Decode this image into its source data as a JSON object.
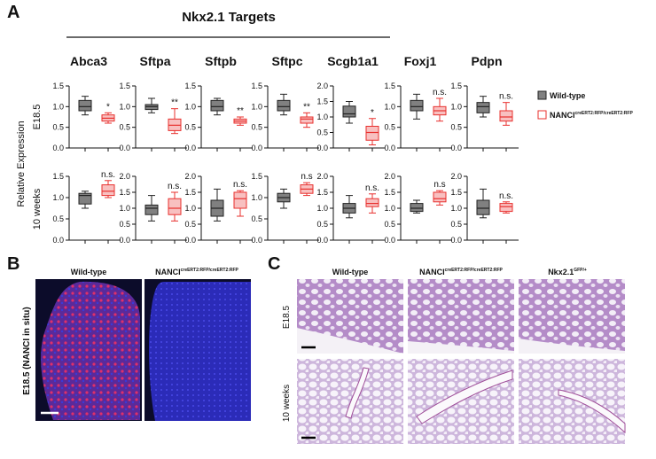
{
  "figure": {
    "panel_labels": [
      "A",
      "B",
      "C"
    ],
    "panel_a": {
      "title": "Nkx2.1 Targets",
      "y_label": "Relative Expression",
      "row_labels": [
        "E18.5",
        "10 weeks"
      ],
      "legend": [
        {
          "name": "Wild-type",
          "color": "#808080"
        },
        {
          "name": "NANCI",
          "superscript": "creERT2:RFP/creERT2:RFP",
          "color": "#e8302e"
        }
      ]
    },
    "panel_b": {
      "columns": [
        {
          "name": "Wild-type"
        },
        {
          "name": "NANCI",
          "superscript": "creERT2:RFP/creERT2:RFP"
        }
      ],
      "row_label": "E18.5 (NANCI in situ)"
    },
    "panel_c": {
      "columns": [
        {
          "name": "Wild-type"
        },
        {
          "name": "NANCI",
          "superscript": "creERT2:RFP/creERT2:RFP"
        },
        {
          "name": "Nkx2.1",
          "superscript": "GFP/+"
        }
      ],
      "row_labels": [
        "E18.5",
        "10 weeks"
      ]
    }
  },
  "chart_data": [
    {
      "type": "box",
      "title": "Abca3",
      "ylim": [
        0,
        1.5
      ],
      "yticks": [
        {
          "value": 0,
          "label": "0.0"
        },
        0.5,
        {
          "value": 1,
          "label": "1.0"
        },
        1.5
      ],
      "annotation": "*",
      "series": [
        {
          "color": "#808080",
          "values": [
            0.8,
            0.9,
            1.0,
            1.15,
            1.25
          ]
        },
        {
          "color": "#e8302e",
          "values": [
            0.6,
            0.65,
            0.72,
            0.8,
            0.85
          ]
        }
      ]
    },
    {
      "type": "box",
      "title": "Sftpa",
      "ylim": [
        0,
        1.5
      ],
      "yticks": [
        {
          "value": 0,
          "label": "0.0"
        },
        0.5,
        {
          "value": 1,
          "label": "1.0"
        },
        1.5
      ],
      "annotation": "**",
      "series": [
        {
          "color": "#808080",
          "values": [
            0.85,
            0.93,
            1.0,
            1.05,
            1.2
          ]
        },
        {
          "color": "#e8302e",
          "values": [
            0.35,
            0.42,
            0.55,
            0.7,
            0.95
          ]
        }
      ]
    },
    {
      "type": "box",
      "title": "Sftpb",
      "ylim": [
        0,
        1.5
      ],
      "yticks": [
        {
          "value": 0,
          "label": "0.0"
        },
        0.5,
        {
          "value": 1,
          "label": "1.0"
        },
        1.5
      ],
      "annotation": "**",
      "series": [
        {
          "color": "#808080",
          "values": [
            0.8,
            0.9,
            1.0,
            1.15,
            1.2
          ]
        },
        {
          "color": "#e8302e",
          "values": [
            0.55,
            0.6,
            0.65,
            0.7,
            0.75
          ]
        }
      ]
    },
    {
      "type": "box",
      "title": "Sftpc",
      "ylim": [
        0,
        1.5
      ],
      "yticks": [
        {
          "value": 0,
          "label": "0.0"
        },
        0.5,
        {
          "value": 1,
          "label": "1.0"
        },
        1.5
      ],
      "annotation": "**",
      "series": [
        {
          "color": "#808080",
          "values": [
            0.8,
            0.9,
            1.0,
            1.15,
            1.3
          ]
        },
        {
          "color": "#e8302e",
          "values": [
            0.5,
            0.6,
            0.7,
            0.75,
            0.85
          ]
        }
      ]
    },
    {
      "type": "box",
      "title": "Scgb1a1",
      "ylim": [
        0,
        2
      ],
      "yticks": [
        {
          "value": 0,
          "label": "0.0"
        },
        0.5,
        {
          "value": 1,
          "label": "1.0"
        },
        1.5,
        {
          "value": 2,
          "label": "2.0"
        }
      ],
      "annotation": "*",
      "series": [
        {
          "color": "#808080",
          "values": [
            0.8,
            1.0,
            1.1,
            1.35,
            1.5
          ]
        },
        {
          "color": "#e8302e",
          "values": [
            0.1,
            0.25,
            0.5,
            0.7,
            0.95
          ]
        }
      ]
    },
    {
      "type": "box",
      "title": "Foxj1",
      "ylim": [
        0,
        1.5
      ],
      "yticks": [
        {
          "value": 0,
          "label": "0.0"
        },
        0.5,
        {
          "value": 1,
          "label": "1.0"
        },
        1.5
      ],
      "annotation": "n.s.",
      "series": [
        {
          "color": "#808080",
          "values": [
            0.7,
            0.9,
            1.0,
            1.15,
            1.3
          ]
        },
        {
          "color": "#e8302e",
          "values": [
            0.65,
            0.8,
            0.9,
            1.0,
            1.2
          ]
        }
      ]
    },
    {
      "type": "box",
      "title": "Pdpn",
      "ylim": [
        0,
        1.5
      ],
      "yticks": [
        {
          "value": 0,
          "label": "0.0"
        },
        0.5,
        {
          "value": 1,
          "label": "1.0"
        },
        1.5
      ],
      "annotation": "n.s.",
      "series": [
        {
          "color": "#808080",
          "values": [
            0.75,
            0.85,
            1.0,
            1.1,
            1.25
          ]
        },
        {
          "color": "#e8302e",
          "values": [
            0.55,
            0.65,
            0.75,
            0.9,
            1.1
          ]
        }
      ]
    },
    {
      "type": "box",
      "ylim": [
        0,
        1.5
      ],
      "yticks": [
        {
          "value": 0,
          "label": "0.0"
        },
        0.5,
        {
          "value": 1,
          "label": "1.0"
        },
        1.5
      ],
      "annotation": "n.s.",
      "series": [
        {
          "color": "#808080",
          "values": [
            0.75,
            0.85,
            1.05,
            1.1,
            1.15
          ]
        },
        {
          "color": "#e8302e",
          "values": [
            1.0,
            1.05,
            1.15,
            1.3,
            1.4
          ]
        }
      ]
    },
    {
      "type": "box",
      "ylim": [
        0,
        2
      ],
      "yticks": [
        {
          "value": 0,
          "label": "0.0"
        },
        0.5,
        {
          "value": 1,
          "label": "1.0"
        },
        1.5,
        {
          "value": 2,
          "label": "2.0"
        }
      ],
      "annotation": "n.s.",
      "series": [
        {
          "color": "#808080",
          "values": [
            0.6,
            0.8,
            1.0,
            1.1,
            1.4
          ]
        },
        {
          "color": "#e8302e",
          "values": [
            0.6,
            0.8,
            1.0,
            1.3,
            1.5
          ]
        }
      ]
    },
    {
      "type": "box",
      "ylim": [
        0,
        2
      ],
      "yticks": [
        {
          "value": 0,
          "label": "0.0"
        },
        0.5,
        {
          "value": 1,
          "label": "1.0"
        },
        1.5,
        {
          "value": 2,
          "label": "2.0"
        }
      ],
      "annotation": "n.s.",
      "series": [
        {
          "color": "#808080",
          "values": [
            0.6,
            0.75,
            1.0,
            1.25,
            1.6
          ]
        },
        {
          "color": "#e8302e",
          "values": [
            0.75,
            1.0,
            1.3,
            1.5,
            1.55
          ]
        }
      ]
    },
    {
      "type": "box",
      "ylim": [
        0,
        1.5
      ],
      "yticks": [
        {
          "value": 0,
          "label": "0.0"
        },
        0.5,
        {
          "value": 1,
          "label": "1.0"
        },
        1.5
      ],
      "annotation": "n.s",
      "series": [
        {
          "color": "#808080",
          "values": [
            0.75,
            0.9,
            1.0,
            1.1,
            1.2
          ]
        },
        {
          "color": "#e8302e",
          "values": [
            1.05,
            1.1,
            1.2,
            1.3,
            1.35
          ]
        }
      ]
    },
    {
      "type": "box",
      "ylim": [
        0,
        2
      ],
      "yticks": [
        {
          "value": 0,
          "label": "0.0"
        },
        0.5,
        {
          "value": 1,
          "label": "1.0"
        },
        1.5,
        {
          "value": 2,
          "label": "2.0"
        }
      ],
      "annotation": "n.s.",
      "series": [
        {
          "color": "#808080",
          "values": [
            0.7,
            0.85,
            1.0,
            1.15,
            1.4
          ]
        },
        {
          "color": "#e8302e",
          "values": [
            0.85,
            1.05,
            1.15,
            1.3,
            1.45
          ]
        }
      ]
    },
    {
      "type": "box",
      "ylim": [
        0,
        2
      ],
      "yticks": [
        {
          "value": 0,
          "label": "0.0"
        },
        0.5,
        {
          "value": 1,
          "label": "1.0"
        },
        1.5,
        {
          "value": 2,
          "label": "2.0"
        }
      ],
      "annotation": "n.s",
      "series": [
        {
          "color": "#808080",
          "values": [
            0.85,
            0.9,
            1.0,
            1.15,
            1.25
          ]
        },
        {
          "color": "#e8302e",
          "values": [
            1.1,
            1.2,
            1.3,
            1.5,
            1.55
          ]
        }
      ]
    },
    {
      "type": "box",
      "ylim": [
        0,
        2
      ],
      "yticks": [
        {
          "value": 0,
          "label": "0.0"
        },
        0.5,
        {
          "value": 1,
          "label": "1.0"
        },
        1.5,
        {
          "value": 2,
          "label": "2.0"
        }
      ],
      "annotation": "n.s.",
      "series": [
        {
          "color": "#808080",
          "values": [
            0.7,
            0.8,
            1.0,
            1.25,
            1.6
          ]
        },
        {
          "color": "#e8302e",
          "values": [
            0.85,
            0.9,
            1.05,
            1.15,
            1.2
          ]
        }
      ]
    }
  ]
}
